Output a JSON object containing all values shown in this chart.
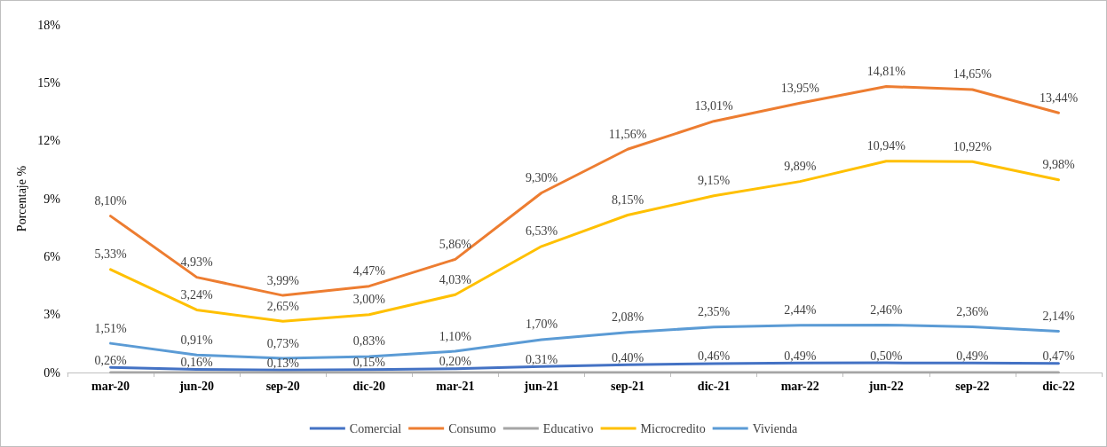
{
  "chart_data": {
    "type": "line",
    "ylabel": "Porcentaje %",
    "categories": [
      "mar-20",
      "jun-20",
      "sep-20",
      "dic-20",
      "mar-21",
      "jun-21",
      "sep-21",
      "dic-21",
      "mar-22",
      "jun-22",
      "sep-22",
      "dic-22"
    ],
    "ylim": [
      0,
      18
    ],
    "yticks": [
      {
        "value": 0,
        "label": "0%"
      },
      {
        "value": 3,
        "label": "3%"
      },
      {
        "value": 6,
        "label": "6%"
      },
      {
        "value": 9,
        "label": "9%"
      },
      {
        "value": 12,
        "label": "12%"
      },
      {
        "value": 15,
        "label": "15%"
      },
      {
        "value": 18,
        "label": "18%"
      }
    ],
    "grid": false,
    "legend": "bottom",
    "marker": "none",
    "line_style": "solid",
    "series": [
      {
        "name": "Comercial",
        "color": "#4472c4",
        "values": [
          0.26,
          0.16,
          0.13,
          0.15,
          0.2,
          0.31,
          0.4,
          0.46,
          0.49,
          0.5,
          0.49,
          0.47
        ],
        "value_labels": [
          "0,26%",
          "0,16%",
          "0,13%",
          "0,15%",
          "0,20%",
          "0,31%",
          "0,40%",
          "0,46%",
          "0,49%",
          "0,50%",
          "0,49%",
          "0,47%"
        ]
      },
      {
        "name": "Consumo",
        "color": "#ed7d31",
        "values": [
          8.1,
          4.93,
          3.99,
          4.47,
          5.86,
          9.3,
          11.56,
          13.01,
          13.95,
          14.81,
          14.65,
          13.44
        ],
        "value_labels": [
          "8,10%",
          "4,93%",
          "3,99%",
          "4,47%",
          "5,86%",
          "9,30%",
          "11,56%",
          "13,01%",
          "13,95%",
          "14,81%",
          "14,65%",
          "13,44%"
        ]
      },
      {
        "name": "Educativo",
        "color": "#a5a5a5",
        "values": [
          0,
          0,
          0,
          0,
          0,
          0,
          0,
          0,
          0,
          0,
          0,
          0
        ]
      },
      {
        "name": "Microcredito",
        "color": "#ffc000",
        "values": [
          5.33,
          3.24,
          2.65,
          3.0,
          4.03,
          6.53,
          8.15,
          9.15,
          9.89,
          10.94,
          10.92,
          9.98
        ],
        "value_labels": [
          "5,33%",
          "3,24%",
          "2,65%",
          "3,00%",
          "4,03%",
          "6,53%",
          "8,15%",
          "9,15%",
          "9,89%",
          "10,94%",
          "10,92%",
          "9,98%"
        ]
      },
      {
        "name": "Vivienda",
        "color": "#5b9bd5",
        "values": [
          1.51,
          0.91,
          0.73,
          0.83,
          1.1,
          1.7,
          2.08,
          2.35,
          2.44,
          2.46,
          2.36,
          2.14
        ],
        "value_labels": [
          "1,51%",
          "0,91%",
          "0,73%",
          "0,83%",
          "1,10%",
          "1,70%",
          "2,08%",
          "2,35%",
          "2,44%",
          "2,46%",
          "2,36%",
          "2,14%"
        ]
      }
    ]
  }
}
